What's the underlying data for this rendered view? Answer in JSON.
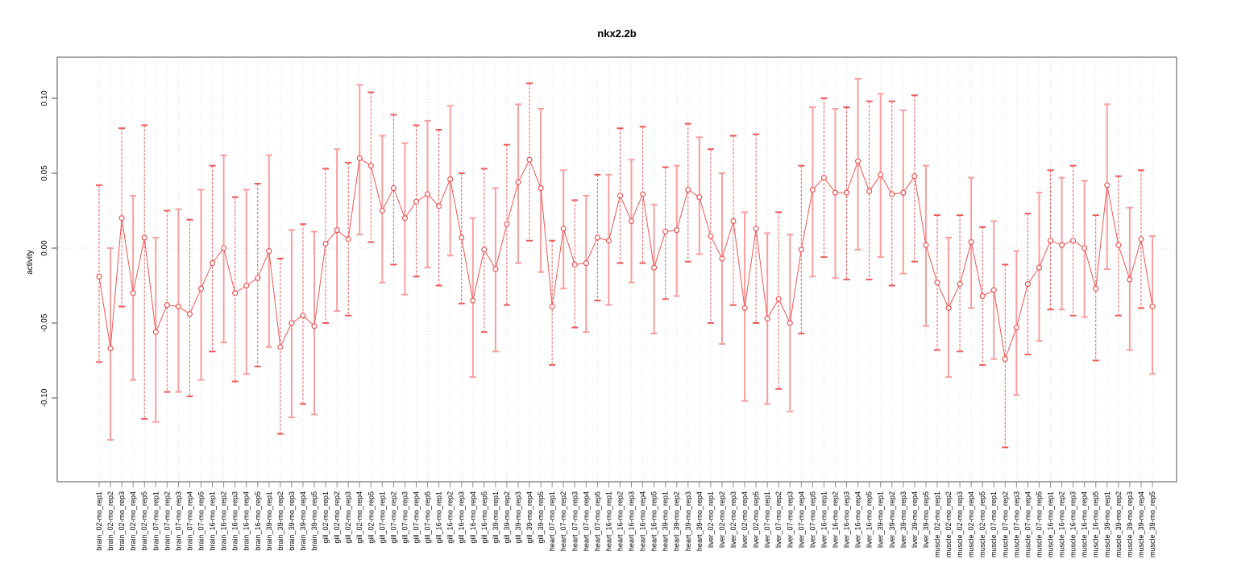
{
  "chart_data": {
    "type": "line",
    "title": "nkx2.2b",
    "ylabel": "activity",
    "xlabel": "",
    "y_ticks": [
      "-0.10",
      "-0.05",
      "0.00",
      "0.05",
      "0.10"
    ],
    "ylim": [
      -0.145,
      0.125
    ],
    "grid": "vertical dotted gridline at every category; dotted horizontal line at y=0",
    "legend": "none",
    "point_color": "#e84b4b",
    "line_color": "#f05555",
    "errorbar_color_dashed": "#ee5a5a",
    "errorbar_color_solid": "#f89e9e",
    "axis_color": "#8a8a8a",
    "categories": [
      "brain_02-mo_rep1",
      "brain_02-mo_rep2",
      "brain_02-mo_rep3",
      "brain_02-mo_rep4",
      "brain_02-mo_rep5",
      "brain_07-mo_rep1",
      "brain_07-mo_rep2",
      "brain_07-mo_rep3",
      "brain_07-mo_rep4",
      "brain_07-mo_rep5",
      "brain_16-mo_rep1",
      "brain_16-mo_rep2",
      "brain_16-mo_rep3",
      "brain_16-mo_rep4",
      "brain_16-mo_rep5",
      "brain_39-mo_rep1",
      "brain_39-mo_rep2",
      "brain_39-mo_rep3",
      "brain_39-mo_rep4",
      "brain_39-mo_rep5",
      "gill_02-mo_rep1",
      "gill_02-mo_rep2",
      "gill_02-mo_rep3",
      "gill_02-mo_rep4",
      "gill_02-mo_rep5",
      "gill_07-mo_rep1",
      "gill_07-mo_rep2",
      "gill_07-mo_rep3",
      "gill_07-mo_rep4",
      "gill_07-mo_rep5",
      "gill_16-mo_rep1",
      "gill_16-mo_rep2",
      "gill_16-mo_rep3",
      "gill_16-mo_rep4",
      "gill_16-mo_rep5",
      "gill_39-mo_rep1",
      "gill_39-mo_rep2",
      "gill_39-mo_rep3",
      "gill_39-mo_rep4",
      "gill_39-mo_rep5",
      "heart_07-mo_rep1",
      "heart_07-mo_rep2",
      "heart_07-mo_rep3",
      "heart_07-mo_rep4",
      "heart_07-mo_rep5",
      "heart_16-mo_rep1",
      "heart_16-mo_rep2",
      "heart_16-mo_rep3",
      "heart_16-mo_rep4",
      "heart_16-mo_rep5",
      "heart_39-mo_rep1",
      "heart_39-mo_rep2",
      "heart_39-mo_rep3",
      "heart_39-mo_rep4",
      "liver_02-mo_rep1",
      "liver_02-mo_rep2",
      "liver_02-mo_rep3",
      "liver_02-mo_rep4",
      "liver_02-mo_rep5",
      "liver_07-mo_rep1",
      "liver_07-mo_rep2",
      "liver_07-mo_rep3",
      "liver_07-mo_rep4",
      "liver_07-mo_rep5",
      "liver_16-mo_rep1",
      "liver_16-mo_rep2",
      "liver_16-mo_rep3",
      "liver_16-mo_rep4",
      "liver_16-mo_rep5",
      "liver_39-mo_rep1",
      "liver_39-mo_rep2",
      "liver_39-mo_rep3",
      "liver_39-mo_rep4",
      "liver_39-mo_rep5",
      "muscle_02-mo_rep1",
      "muscle_02-mo_rep2",
      "muscle_02-mo_rep3",
      "muscle_02-mo_rep4",
      "muscle_02-mo_rep5",
      "muscle_07-mo_rep1",
      "muscle_07-mo_rep2",
      "muscle_07-mo_rep3",
      "muscle_07-mo_rep4",
      "muscle_07-mo_rep5",
      "muscle_16-mo_rep1",
      "muscle_16-mo_rep2",
      "muscle_16-mo_rep3",
      "muscle_16-mo_rep4",
      "muscle_16-mo_rep5",
      "muscle_39-mo_rep1",
      "muscle_39-mo_rep2",
      "muscle_39-mo_rep3",
      "muscle_39-mo_rep4",
      "muscle_39-mo_rep5"
    ],
    "values": [
      -0.019,
      -0.067,
      0.02,
      -0.03,
      0.007,
      -0.056,
      -0.038,
      -0.039,
      -0.044,
      -0.027,
      -0.01,
      0.0,
      -0.03,
      -0.025,
      -0.02,
      -0.002,
      -0.066,
      -0.05,
      -0.045,
      -0.052,
      0.003,
      0.012,
      0.006,
      0.06,
      0.055,
      0.025,
      0.04,
      0.02,
      0.031,
      0.036,
      0.028,
      0.046,
      0.007,
      -0.035,
      -0.001,
      -0.014,
      0.016,
      0.044,
      0.059,
      0.04,
      -0.039,
      0.013,
      -0.011,
      -0.01,
      0.007,
      0.005,
      0.035,
      0.018,
      0.036,
      -0.013,
      0.011,
      0.012,
      0.039,
      0.034,
      0.008,
      -0.007,
      0.018,
      -0.04,
      0.013,
      -0.047,
      -0.034,
      -0.05,
      -0.001,
      0.039,
      0.047,
      0.037,
      0.037,
      0.058,
      0.038,
      0.049,
      0.036,
      0.037,
      0.048,
      0.002,
      -0.023,
      -0.04,
      -0.024,
      0.004,
      -0.032,
      -0.028,
      -0.074,
      -0.053,
      -0.024,
      -0.013,
      0.005,
      0.002,
      0.005,
      0.0,
      -0.027,
      0.042,
      0.002,
      -0.021,
      0.006,
      -0.039
    ],
    "err_lo": [
      -0.076,
      -0.128,
      -0.039,
      -0.088,
      -0.114,
      -0.116,
      -0.096,
      -0.096,
      -0.099,
      -0.088,
      -0.069,
      -0.063,
      -0.089,
      -0.084,
      -0.079,
      -0.066,
      -0.124,
      -0.113,
      -0.104,
      -0.111,
      -0.05,
      -0.042,
      -0.045,
      0.009,
      0.004,
      -0.023,
      -0.011,
      -0.031,
      -0.019,
      -0.013,
      -0.025,
      -0.005,
      -0.037,
      -0.086,
      -0.056,
      -0.069,
      -0.038,
      -0.01,
      0.005,
      -0.016,
      -0.078,
      -0.027,
      -0.053,
      -0.056,
      -0.035,
      -0.038,
      -0.01,
      -0.023,
      -0.01,
      -0.057,
      -0.034,
      -0.032,
      -0.009,
      -0.004,
      -0.05,
      -0.064,
      -0.038,
      -0.102,
      -0.05,
      -0.104,
      -0.094,
      -0.109,
      -0.057,
      -0.019,
      -0.006,
      -0.02,
      -0.021,
      -0.001,
      -0.021,
      -0.006,
      -0.025,
      -0.017,
      -0.009,
      -0.052,
      -0.068,
      -0.086,
      -0.069,
      -0.04,
      -0.078,
      -0.074,
      -0.133,
      -0.098,
      -0.071,
      -0.062,
      -0.041,
      -0.041,
      -0.045,
      -0.046,
      -0.075,
      -0.014,
      -0.045,
      -0.068,
      -0.04,
      -0.084
    ],
    "err_hi": [
      0.042,
      0.0,
      0.08,
      0.035,
      0.082,
      0.007,
      0.025,
      0.026,
      0.019,
      0.039,
      0.055,
      0.062,
      0.034,
      0.039,
      0.043,
      0.062,
      -0.007,
      0.012,
      0.016,
      0.011,
      0.053,
      0.066,
      0.057,
      0.109,
      0.104,
      0.075,
      0.089,
      0.07,
      0.082,
      0.085,
      0.079,
      0.095,
      0.05,
      0.02,
      0.053,
      0.04,
      0.069,
      0.096,
      0.11,
      0.093,
      0.005,
      0.052,
      0.032,
      0.035,
      0.049,
      0.049,
      0.08,
      0.059,
      0.081,
      0.029,
      0.054,
      0.055,
      0.083,
      0.074,
      0.066,
      0.05,
      0.075,
      0.024,
      0.076,
      0.01,
      0.024,
      0.009,
      0.055,
      0.094,
      0.1,
      0.093,
      0.094,
      0.113,
      0.098,
      0.103,
      0.098,
      0.092,
      0.102,
      0.055,
      0.022,
      0.007,
      0.022,
      0.047,
      0.014,
      0.018,
      -0.011,
      -0.002,
      0.023,
      0.037,
      0.052,
      0.047,
      0.055,
      0.045,
      0.022,
      0.096,
      0.048,
      0.027,
      0.052,
      0.008
    ]
  }
}
